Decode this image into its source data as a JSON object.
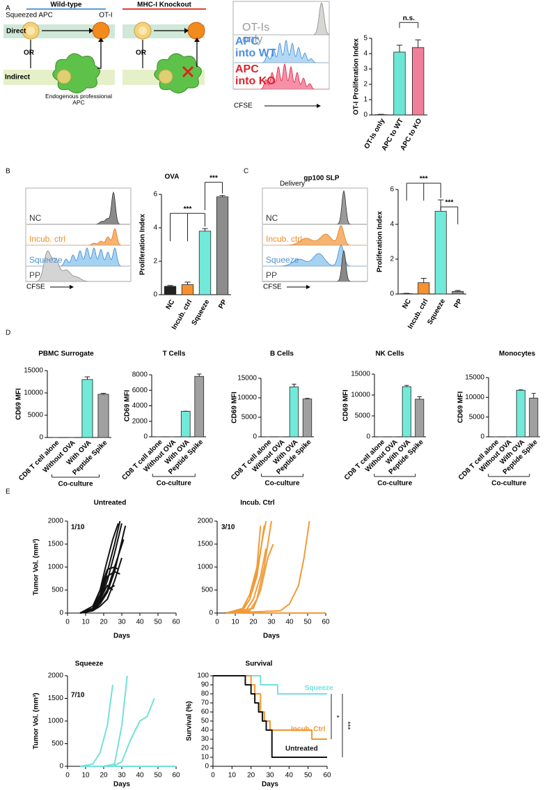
{
  "panels": [
    "A",
    "B",
    "C",
    "D",
    "E"
  ],
  "diagram": {
    "wild_type": "Wild-type",
    "knockout": "MHC-I Knockout",
    "squeezed_apc": "Squeezed APC",
    "ot1": "OT-I",
    "direct": "Direct",
    "indirect": "Indirect",
    "or": "OR",
    "endogenous": "Endogenous professional APC"
  },
  "flow": [
    {
      "labels": [
        {
          "text": "OT-Is only",
          "color": "#9a9a9a"
        },
        {
          "text": "APC into WT",
          "color": "#4a8fe0"
        },
        {
          "text": "APC into KO",
          "color": "#e0202a"
        }
      ],
      "axis_label": "CFSE"
    },
    {
      "title": "OVA",
      "labels": [
        {
          "text": "NC",
          "color": "#333333"
        },
        {
          "text": "Incub. ctrl",
          "color": "#f08a24"
        },
        {
          "text": "Squeeze",
          "color": "#4a90d0"
        },
        {
          "text": "PP",
          "color": "#444444"
        }
      ],
      "axis_label": "CFSE"
    },
    {
      "title": "Delivery",
      "labels": [
        {
          "text": "NC",
          "color": "#333333"
        },
        {
          "text": "Incub. ctrl",
          "color": "#f08a24"
        },
        {
          "text": "Squeeze",
          "color": "#4a90d0"
        },
        {
          "text": "PP",
          "color": "#444444"
        }
      ],
      "axis_label": "CFSE"
    }
  ],
  "chart_data": [
    {
      "type": "bar",
      "ylabel": "OT-I Proliferation Index",
      "categories": [
        "OT-Is only",
        "APC to WT",
        "APC to KO"
      ],
      "values": [
        0.02,
        4.1,
        4.4
      ],
      "errors": [
        0.02,
        0.45,
        0.5
      ],
      "colors": [
        "#ffffff",
        "#6ee6d6",
        "#f0809a"
      ],
      "ylim": [
        0,
        5
      ],
      "yticks": [
        0,
        1,
        2,
        3,
        4,
        5
      ],
      "significance": [
        {
          "label": "n.s.",
          "between": [
            "APC to WT",
            "APC to KO"
          ]
        }
      ]
    },
    {
      "type": "bar",
      "ylabel": "Proliferation Index",
      "categories": [
        "NC",
        "Incub. ctrl",
        "Squeeze",
        "PP"
      ],
      "values": [
        0.5,
        0.6,
        3.8,
        5.85
      ],
      "errors": [
        0.05,
        0.15,
        0.15,
        0.08
      ],
      "colors": [
        "#222222",
        "#f5922f",
        "#72ead9",
        "#8c8c8c"
      ],
      "ylim": [
        0,
        6
      ],
      "yticks": [
        0,
        2,
        4,
        6
      ],
      "significance": [
        {
          "label": "***",
          "between": [
            "NC",
            "Incub. ctrl",
            "Squeeze"
          ]
        },
        {
          "label": "***",
          "between": [
            "Squeeze",
            "PP"
          ]
        }
      ]
    },
    {
      "type": "bar",
      "title": "gp100 SLP",
      "ylabel": "Proliferation Index",
      "categories": [
        "NC",
        "Incub. ctrl",
        "Squeeze",
        "PP"
      ],
      "values": [
        0.02,
        0.65,
        4.75,
        0.15
      ],
      "errors": [
        0.02,
        0.25,
        0.65,
        0.05
      ],
      "colors": [
        "#222222",
        "#f5922f",
        "#72ead9",
        "#8c8c8c"
      ],
      "ylim": [
        0,
        6
      ],
      "yticks": [
        0,
        2,
        4,
        6
      ],
      "significance": [
        {
          "label": "***",
          "between": [
            "NC",
            "Incub. ctrl",
            "Squeeze"
          ]
        },
        {
          "label": "***",
          "between": [
            "Squeeze",
            "PP"
          ]
        }
      ]
    },
    {
      "type": "bar",
      "title": "PBMC Surrogate",
      "ylabel": "CD69 MFI",
      "categories": [
        "CD8 T cell alone",
        "Without OVA",
        "With OVA",
        "Peptide Spike"
      ],
      "values": [
        0,
        0,
        13000,
        9700
      ],
      "errors": [
        0,
        0,
        600,
        200
      ],
      "colors": [
        "#ffffff",
        "#ffffff",
        "#72ead9",
        "#a0a0a0"
      ],
      "ylim": [
        0,
        15000
      ],
      "yticks": [
        0,
        5000,
        10000,
        15000
      ],
      "group_label": "Co-culture"
    },
    {
      "type": "bar",
      "title": "T Cells",
      "ylabel": "CD69 MFI",
      "categories": [
        "CD8 T cell alone",
        "Without OVA",
        "With OVA",
        "Peptide Spike"
      ],
      "values": [
        0,
        0,
        3300,
        7800
      ],
      "errors": [
        0,
        0,
        0,
        300
      ],
      "colors": [
        "#ffffff",
        "#ffffff",
        "#72ead9",
        "#a0a0a0"
      ],
      "ylim": [
        0,
        8000
      ],
      "yticks": [
        0,
        2000,
        4000,
        6000,
        8000
      ],
      "group_label": "Co-culture"
    },
    {
      "type": "bar",
      "title": "B Cells",
      "ylabel": "CD69 MFI",
      "categories": [
        "CD8 T cell alone",
        "Without OVA",
        "With OVA",
        "Peptide Spike"
      ],
      "values": [
        0,
        0,
        12800,
        9700
      ],
      "errors": [
        0,
        0,
        700,
        150
      ],
      "colors": [
        "#ffffff",
        "#ffffff",
        "#72ead9",
        "#a0a0a0"
      ],
      "ylim": [
        0,
        15000
      ],
      "yticks": [
        0,
        5000,
        10000,
        15000
      ],
      "group_label": "Co-culture"
    },
    {
      "type": "bar",
      "title": "NK Cells",
      "ylabel": "CD69 MFI",
      "categories": [
        "CD8 T cell alone",
        "Without OVA",
        "With OVA",
        "Peptide Spike"
      ],
      "values": [
        0,
        0,
        12000,
        9000
      ],
      "errors": [
        0,
        0,
        300,
        600
      ],
      "colors": [
        "#ffffff",
        "#ffffff",
        "#72ead9",
        "#a0a0a0"
      ],
      "ylim": [
        0,
        15000
      ],
      "yticks": [
        0,
        5000,
        10000,
        15000
      ],
      "group_label": "Co-culture"
    },
    {
      "type": "bar",
      "title": "Monocytes",
      "ylabel": "CD69 MFI",
      "categories": [
        "CD8 T cell alone",
        "Without OVA",
        "With OVA",
        "Peptide Spike"
      ],
      "values": [
        0,
        0,
        11800,
        9800
      ],
      "errors": [
        0,
        0,
        100,
        1200
      ],
      "colors": [
        "#ffffff",
        "#ffffff",
        "#72ead9",
        "#a0a0a0"
      ],
      "ylim": [
        0,
        15000
      ],
      "yticks": [
        0,
        5000,
        10000,
        15000
      ],
      "group_label": "Co-culture"
    },
    {
      "type": "line",
      "title": "Untreated",
      "note": "1/10",
      "ylabel": "Tumor Vol. (mm³)",
      "xlabel": "Days",
      "color": "#111111",
      "xlim": [
        0,
        60
      ],
      "xticks": [
        0,
        10,
        20,
        30,
        40,
        50,
        60
      ],
      "ylim": [
        0,
        2000
      ],
      "yticks": [
        0,
        500,
        1000,
        1500,
        2000
      ],
      "series": [
        {
          "x": [
            7,
            14,
            18,
            22,
            26,
            29
          ],
          "values": [
            0,
            100,
            400,
            900,
            1500,
            2000
          ]
        },
        {
          "x": [
            7,
            14,
            18,
            22,
            26,
            30
          ],
          "values": [
            0,
            80,
            300,
            700,
            1300,
            1950
          ]
        },
        {
          "x": [
            7,
            14,
            18,
            21,
            25,
            28
          ],
          "values": [
            0,
            150,
            500,
            1000,
            1600,
            1950
          ]
        },
        {
          "x": [
            7,
            14,
            18,
            22,
            26,
            31
          ],
          "values": [
            0,
            60,
            250,
            500,
            1000,
            1600
          ]
        },
        {
          "x": [
            7,
            14,
            18,
            22,
            26,
            32
          ],
          "values": [
            0,
            50,
            200,
            450,
            900,
            1900
          ]
        },
        {
          "x": [
            7,
            14,
            18,
            22,
            26,
            29
          ],
          "values": [
            0,
            100,
            350,
            800,
            900,
            850
          ]
        },
        {
          "x": [
            7,
            14,
            18,
            22,
            26,
            28
          ],
          "values": [
            0,
            100,
            500,
            950,
            1000,
            950
          ]
        },
        {
          "x": [
            7,
            14,
            18,
            22,
            25
          ],
          "values": [
            0,
            80,
            300,
            600,
            500
          ]
        },
        {
          "x": [
            7,
            14,
            18,
            22,
            26
          ],
          "values": [
            0,
            70,
            250,
            500,
            600
          ]
        },
        {
          "x": [
            7,
            14,
            18,
            22,
            26,
            30
          ],
          "values": [
            0,
            50,
            150,
            300,
            700,
            1200
          ]
        }
      ]
    },
    {
      "type": "line",
      "title": "Incub. Ctrl",
      "note": "3/10",
      "xlabel": "Days",
      "color": "#f29a38",
      "xlim": [
        0,
        60
      ],
      "xticks": [
        0,
        10,
        20,
        30,
        40,
        50,
        60
      ],
      "ylim": [
        0,
        2000
      ],
      "yticks": [
        0,
        500,
        1000,
        1500,
        2000
      ],
      "series": [
        {
          "x": [
            5,
            14,
            18,
            22,
            24
          ],
          "values": [
            0,
            100,
            400,
            1000,
            1900
          ]
        },
        {
          "x": [
            5,
            14,
            18,
            22,
            26
          ],
          "values": [
            0,
            50,
            300,
            800,
            1900
          ]
        },
        {
          "x": [
            5,
            14,
            18,
            22,
            25,
            27
          ],
          "values": [
            0,
            80,
            300,
            900,
            1600,
            2000
          ]
        },
        {
          "x": [
            5,
            16,
            20,
            24,
            27
          ],
          "values": [
            0,
            60,
            300,
            800,
            1400
          ]
        },
        {
          "x": [
            5,
            18,
            22,
            26,
            30
          ],
          "values": [
            0,
            50,
            300,
            1000,
            2000
          ]
        },
        {
          "x": [
            5,
            20,
            24,
            28,
            31
          ],
          "values": [
            0,
            100,
            500,
            1200,
            1500
          ]
        },
        {
          "x": [
            5,
            35,
            40,
            45,
            48,
            51
          ],
          "values": [
            0,
            50,
            200,
            600,
            1200,
            2000
          ]
        },
        {
          "x": [
            5,
            60
          ],
          "values": [
            0,
            0
          ]
        }
      ]
    },
    {
      "type": "line",
      "title": "Squeeze",
      "note": "7/10",
      "ylabel": "Tumor Vol. (mm³)",
      "xlabel": "Days",
      "color": "#72e0d8",
      "xlim": [
        0,
        60
      ],
      "xticks": [
        0,
        10,
        20,
        30,
        40,
        50,
        60
      ],
      "ylim": [
        0,
        2000
      ],
      "yticks": [
        0,
        500,
        1000,
        1500,
        2000
      ],
      "series": [
        {
          "x": [
            7,
            14,
            18,
            22,
            25
          ],
          "values": [
            0,
            50,
            300,
            900,
            1800
          ]
        },
        {
          "x": [
            7,
            20,
            26,
            30,
            33
          ],
          "values": [
            0,
            0,
            50,
            900,
            2000
          ]
        },
        {
          "x": [
            7,
            25,
            30,
            35,
            40,
            44,
            48
          ],
          "values": [
            0,
            0,
            100,
            600,
            1000,
            1100,
            1500
          ]
        },
        {
          "x": [
            7,
            60
          ],
          "values": [
            0,
            0
          ]
        }
      ]
    },
    {
      "type": "line",
      "step": true,
      "title": "Survival",
      "ylabel": "Survival (%)",
      "xlabel": "Days",
      "xlim": [
        0,
        60
      ],
      "xticks": [
        0,
        10,
        20,
        30,
        40,
        50,
        60
      ],
      "ylim": [
        0,
        100
      ],
      "yticks": [
        0,
        10,
        20,
        30,
        40,
        50,
        60,
        70,
        80,
        90,
        100
      ],
      "series": [
        {
          "name": "Squeeze",
          "color": "#72e0e0",
          "x": [
            0,
            25,
            34,
            60
          ],
          "values": [
            100,
            90,
            80,
            80
          ]
        },
        {
          "name": "Incub. Ctrl",
          "color": "#f0962e",
          "x": [
            0,
            20,
            22,
            25,
            27,
            30,
            52,
            60
          ],
          "values": [
            100,
            90,
            80,
            60,
            50,
            40,
            30,
            30
          ]
        },
        {
          "name": "Untreated",
          "color": "#111111",
          "x": [
            0,
            17,
            20,
            22,
            24,
            26,
            28,
            31,
            60
          ],
          "values": [
            100,
            90,
            80,
            70,
            60,
            50,
            40,
            10,
            10
          ]
        }
      ],
      "significance": [
        {
          "label": "*",
          "between": [
            "Squeeze",
            "Incub. Ctrl"
          ]
        },
        {
          "label": "***",
          "between": [
            "Squeeze",
            "Untreated"
          ]
        }
      ]
    }
  ]
}
